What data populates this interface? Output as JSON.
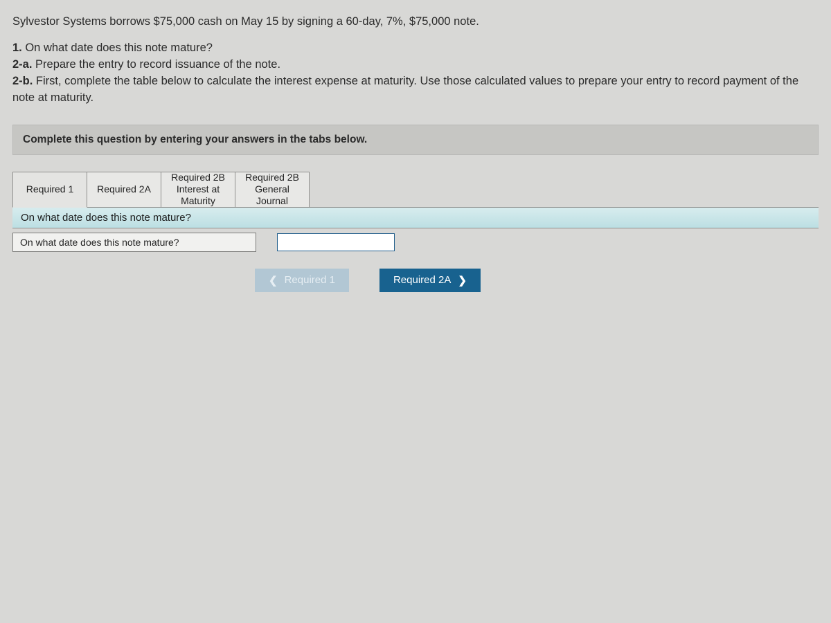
{
  "problem": {
    "intro": "Sylvestor Systems borrows $75,000 cash on May 15 by signing a 60-day, 7%, $75,000 note.",
    "q1_label": "1.",
    "q1_text": " On what date does this note mature?",
    "q2a_label": "2-a.",
    "q2a_text": " Prepare the entry to record issuance of the note.",
    "q2b_label": "2-b.",
    "q2b_text": " First, complete the table below to calculate the interest expense at maturity. Use those calculated values to prepare your entry to record payment of the note at maturity."
  },
  "instruction": "Complete this question by entering your answers in the tabs below.",
  "tabs": [
    {
      "line1": "Required 1",
      "line2": ""
    },
    {
      "line1": "Required 2A",
      "line2": ""
    },
    {
      "line1": "Required 2B",
      "line2": "Interest at",
      "line3": "Maturity"
    },
    {
      "line1": "Required 2B",
      "line2": "General",
      "line3": "Journal"
    }
  ],
  "active_tab_subtitle": "On what date does this note mature?",
  "answer": {
    "label": "On what date does this note mature?",
    "value": ""
  },
  "nav": {
    "prev": "Required 1",
    "next": "Required 2A"
  },
  "colors": {
    "page_bg": "#d8d8d6",
    "bar_bg": "#c6c6c3",
    "tab_bg": "#e8e8e6",
    "subtitle_bg_top": "#d7ecee",
    "subtitle_bg_bot": "#bcdfe3",
    "prev_btn_bg": "#b2c7d4",
    "next_btn_bg": "#18628f"
  }
}
